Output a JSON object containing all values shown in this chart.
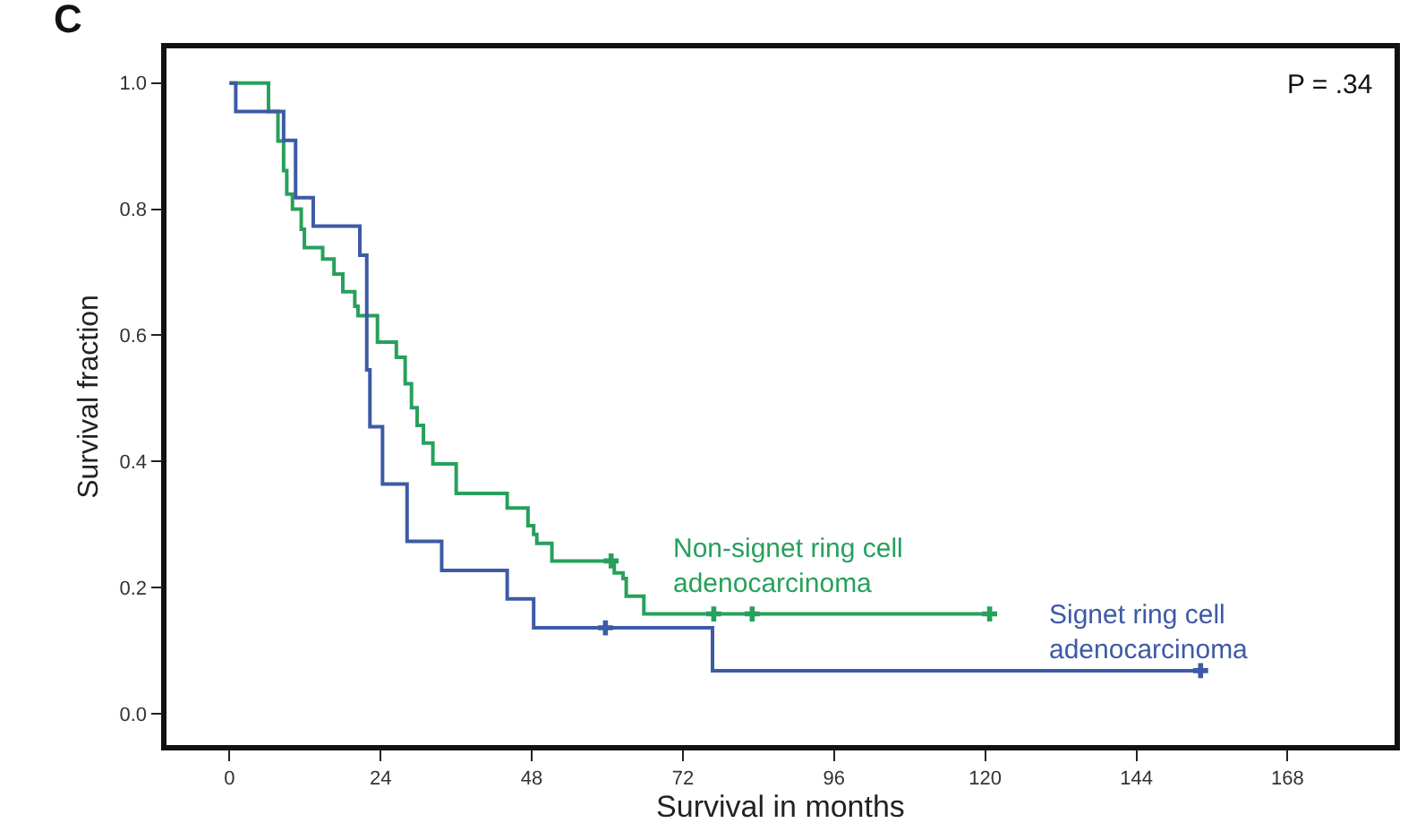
{
  "chart_data": {
    "type": "step",
    "xlabel": "Survival in months",
    "ylabel": "Survival fraction",
    "annotations": [
      "C",
      "P = .34"
    ],
    "xlim": [
      -10,
      185
    ],
    "xticks": [
      0,
      24,
      48,
      72,
      96,
      120,
      144,
      168
    ],
    "ylim": [
      -0.05,
      1.055
    ],
    "yticks": [
      {
        "value": 0,
        "label": "0.0"
      },
      {
        "value": 0.2,
        "label": "0.2"
      },
      {
        "value": 0.4,
        "label": "0.4"
      },
      {
        "value": 0.6,
        "label": "0.6"
      },
      {
        "value": 0.8,
        "label": "0.8"
      },
      {
        "value": 1,
        "label": "1.0"
      }
    ],
    "grid": false,
    "series": [
      {
        "name": "Non-signet ring cell\nadenocarcinoma",
        "color": "#27a05c",
        "x": [
          0,
          6.2,
          7.7,
          8.6,
          9.1,
          10.0,
          11.4,
          11.9,
          14.8,
          16.6,
          18.0,
          19.9,
          20.4,
          23.5,
          26.5,
          27.9,
          28.9,
          29.8,
          30.8,
          32.3,
          36.0,
          44.1,
          47.4,
          48.3,
          48.8,
          51.2,
          61.1,
          62.5,
          63.0,
          65.8,
          120.7
        ],
        "values": [
          1.0,
          0.955,
          0.908,
          0.861,
          0.824,
          0.8,
          0.768,
          0.739,
          0.721,
          0.697,
          0.669,
          0.646,
          0.631,
          0.589,
          0.565,
          0.523,
          0.485,
          0.457,
          0.429,
          0.396,
          0.349,
          0.326,
          0.298,
          0.284,
          0.27,
          0.242,
          0.223,
          0.214,
          0.186,
          0.158,
          0.158
        ]
      },
      {
        "name": "Signet ring cell\nadenocarcinoma",
        "color": "#3d5aa6",
        "x": [
          0,
          1.0,
          8.6,
          10.5,
          13.3,
          20.7,
          21.8,
          22.3,
          24.3,
          28.2,
          33.7,
          44.1,
          48.3,
          76.7,
          154.2
        ],
        "values": [
          1.0,
          0.955,
          0.909,
          0.818,
          0.773,
          0.727,
          0.545,
          0.455,
          0.364,
          0.273,
          0.227,
          0.182,
          0.136,
          0.068,
          0.068
        ]
      },
      {
        "type": "scatter",
        "marker": "cross",
        "color": "#27a05c",
        "x": [
          60.6,
          76.9,
          83.0,
          120.7
        ],
        "values": [
          0.242,
          0.158,
          0.158,
          0.158
        ]
      },
      {
        "type": "scatter",
        "marker": "cross",
        "color": "#3d5aa6",
        "x": [
          59.7,
          154.2
        ],
        "values": [
          0.136,
          0.068
        ]
      }
    ]
  }
}
